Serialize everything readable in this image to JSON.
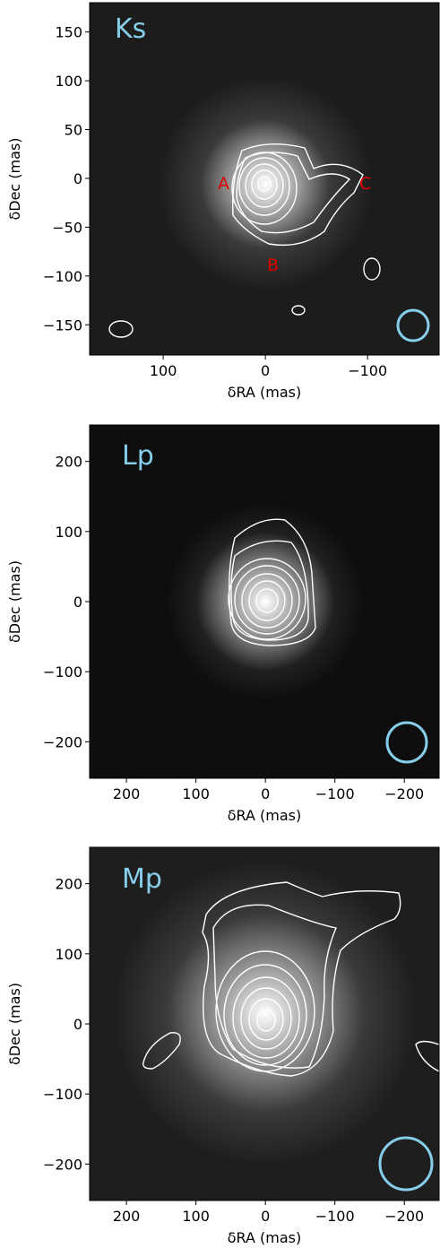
{
  "chart_data": [
    {
      "type": "image",
      "label": "Ks",
      "xlabel": "δRA (mas)",
      "ylabel": "δDec (mas)",
      "xlim": [
        172,
        -170
      ],
      "ylim": [
        -181,
        180
      ],
      "xticks": [
        100,
        0,
        {
          "value": -100,
          "label": "−100"
        }
      ],
      "yticks": [
        150,
        100,
        50,
        0,
        {
          "value": -50,
          "label": "−50"
        },
        {
          "value": -100,
          "label": "−100"
        },
        {
          "value": -150,
          "label": "−150"
        }
      ],
      "annotations": [
        "A",
        "B",
        "C"
      ]
    },
    {
      "type": "image",
      "label": "Lp",
      "xlabel": "δRA (mas)",
      "ylabel": "δDec (mas)",
      "xlim": [
        253,
        -250
      ],
      "ylim": [
        -252,
        252
      ],
      "xticks": [
        200,
        100,
        0,
        {
          "value": -100,
          "label": "−100"
        },
        {
          "value": -200,
          "label": "−200"
        }
      ],
      "yticks": [
        200,
        100,
        0,
        {
          "value": -100,
          "label": "−100"
        },
        {
          "value": -200,
          "label": "−200"
        }
      ]
    },
    {
      "type": "image",
      "label": "Mp",
      "xlabel": "δRA (mas)",
      "ylabel": "δDec (mas)",
      "xlim": [
        253,
        -250
      ],
      "ylim": [
        -252,
        252
      ],
      "xticks": [
        200,
        100,
        0,
        {
          "value": -100,
          "label": "−100"
        },
        {
          "value": -200,
          "label": "−200"
        }
      ],
      "yticks": [
        200,
        100,
        0,
        {
          "value": -100,
          "label": "−100"
        },
        {
          "value": -200,
          "label": "−200"
        }
      ]
    }
  ]
}
